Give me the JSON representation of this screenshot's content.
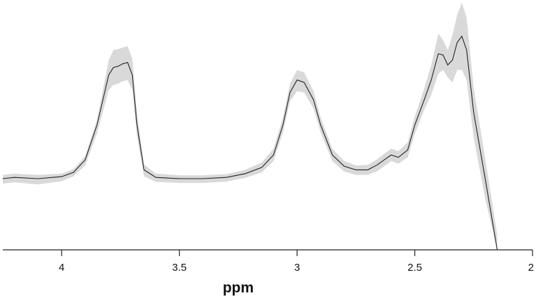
{
  "chart_data": {
    "type": "line",
    "title": "",
    "xlabel": "ppm",
    "ylabel": "",
    "xlim": [
      4.25,
      2.0
    ],
    "x_reversed": true,
    "ylim": [
      0,
      1.0
    ],
    "x_ticks": [
      4,
      3.5,
      3,
      2.5,
      2
    ],
    "x_tick_labels": [
      "4",
      "3.5",
      "3",
      "2.5",
      "2"
    ],
    "grid": false,
    "legend": "none",
    "colors": {
      "mean": "#222222",
      "band": "#d9d9d9"
    },
    "series": [
      {
        "kind": "mean-with-band",
        "x": [
          4.25,
          4.2,
          4.1,
          4.0,
          3.95,
          3.9,
          3.85,
          3.8,
          3.78,
          3.76,
          3.74,
          3.72,
          3.7,
          3.68,
          3.65,
          3.6,
          3.5,
          3.4,
          3.3,
          3.22,
          3.15,
          3.1,
          3.06,
          3.03,
          3.0,
          2.97,
          2.93,
          2.9,
          2.85,
          2.8,
          2.75,
          2.7,
          2.66,
          2.63,
          2.6,
          2.57,
          2.53,
          2.5,
          2.46,
          2.43,
          2.4,
          2.38,
          2.36,
          2.34,
          2.32,
          2.3,
          2.28,
          2.25,
          2.2,
          2.15
        ],
        "y": [
          0.285,
          0.29,
          0.285,
          0.293,
          0.31,
          0.36,
          0.5,
          0.7,
          0.73,
          0.735,
          0.745,
          0.75,
          0.7,
          0.5,
          0.32,
          0.29,
          0.285,
          0.285,
          0.29,
          0.305,
          0.33,
          0.38,
          0.5,
          0.63,
          0.68,
          0.67,
          0.6,
          0.5,
          0.38,
          0.335,
          0.32,
          0.32,
          0.34,
          0.36,
          0.38,
          0.37,
          0.4,
          0.5,
          0.6,
          0.68,
          0.785,
          0.78,
          0.74,
          0.76,
          0.83,
          0.855,
          0.8,
          0.55,
          0.28,
          0.0
        ],
        "upper": [
          0.3,
          0.305,
          0.3,
          0.305,
          0.323,
          0.376,
          0.52,
          0.76,
          0.8,
          0.803,
          0.81,
          0.815,
          0.765,
          0.55,
          0.342,
          0.305,
          0.298,
          0.298,
          0.303,
          0.32,
          0.35,
          0.405,
          0.53,
          0.665,
          0.72,
          0.71,
          0.635,
          0.53,
          0.405,
          0.355,
          0.338,
          0.34,
          0.362,
          0.385,
          0.405,
          0.395,
          0.43,
          0.535,
          0.645,
          0.74,
          0.865,
          0.84,
          0.8,
          0.86,
          0.94,
          0.99,
          0.93,
          0.65,
          0.36,
          0.06
        ],
        "lower": [
          0.265,
          0.27,
          0.262,
          0.275,
          0.294,
          0.338,
          0.465,
          0.64,
          0.66,
          0.665,
          0.675,
          0.68,
          0.64,
          0.455,
          0.295,
          0.272,
          0.268,
          0.268,
          0.273,
          0.288,
          0.31,
          0.355,
          0.47,
          0.595,
          0.635,
          0.63,
          0.565,
          0.47,
          0.355,
          0.313,
          0.3,
          0.3,
          0.315,
          0.335,
          0.355,
          0.345,
          0.37,
          0.465,
          0.56,
          0.62,
          0.705,
          0.72,
          0.69,
          0.67,
          0.72,
          0.72,
          0.68,
          0.45,
          0.2,
          0.0
        ]
      }
    ]
  }
}
